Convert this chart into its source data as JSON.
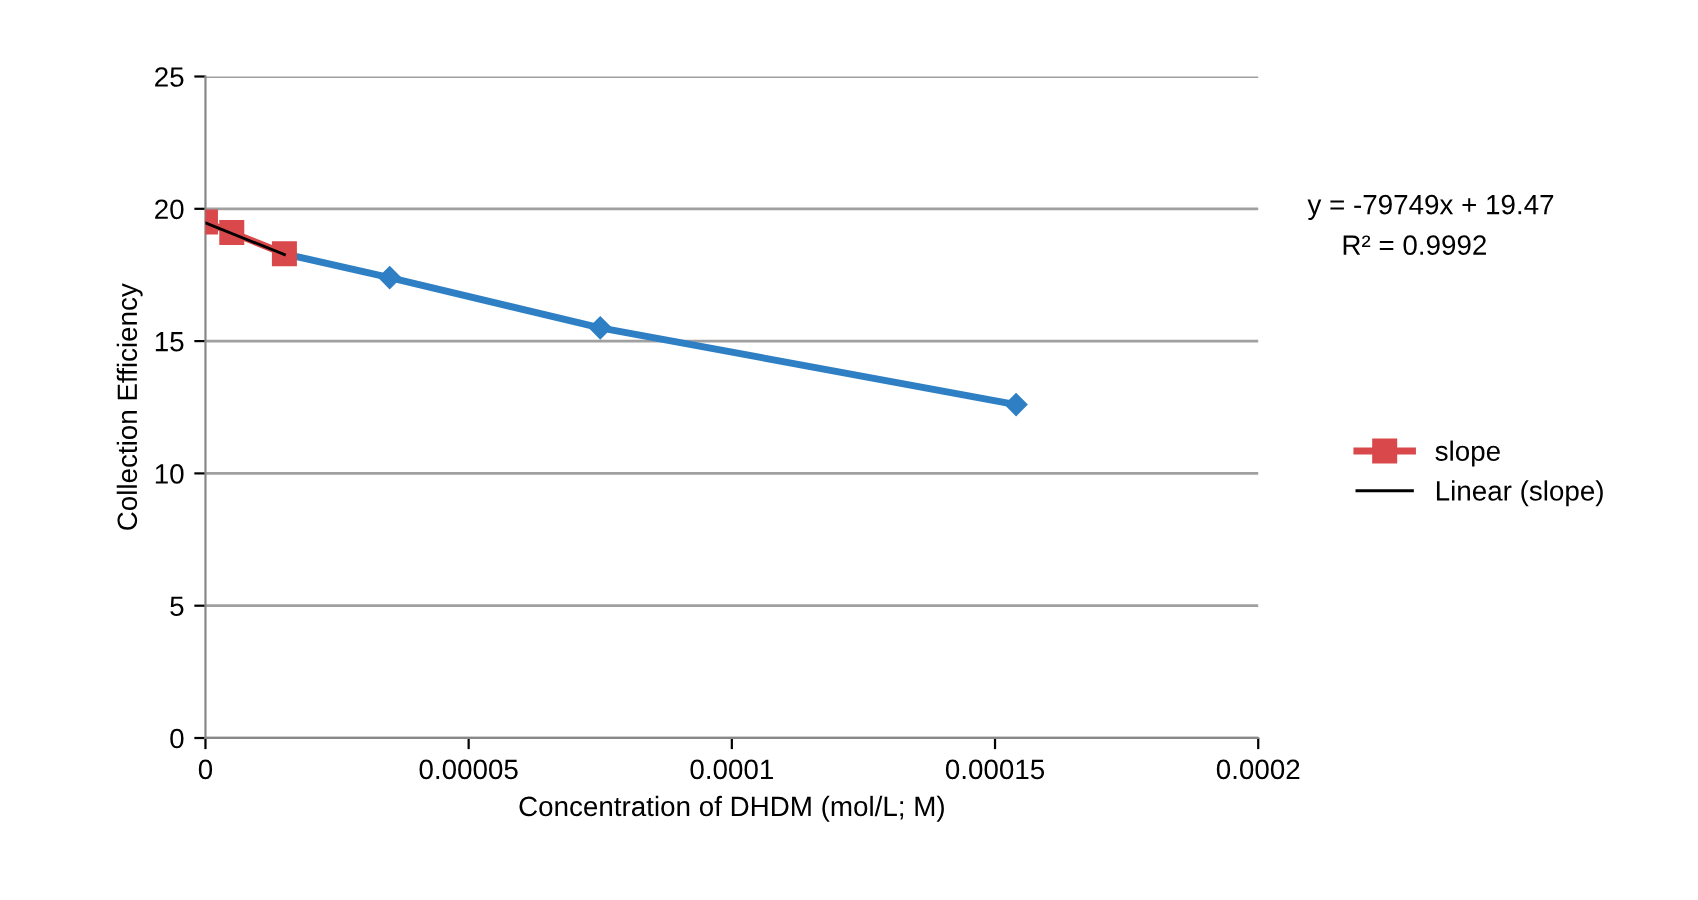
{
  "chart_data": {
    "type": "line",
    "xlabel": "Concentration of DHDM (mol/L; M)",
    "ylabel": "Collection Efficiency",
    "series": [
      {
        "color": "#2e7fc4",
        "marker": "diamond",
        "x": [
          1.5e-05,
          3.5e-05,
          7.5e-05,
          0.000154
        ],
        "values": [
          18.3,
          17.4,
          15.5,
          12.6
        ]
      },
      {
        "name": "slope",
        "color": "#d9484b",
        "marker": "square",
        "x": [
          0,
          5e-06,
          1.5e-05
        ],
        "values": [
          19.5,
          19.1,
          18.3
        ]
      },
      {
        "name": "Linear (slope)",
        "color": "#000000",
        "marker": "none",
        "x": [
          0,
          1.5e-05
        ],
        "values": [
          19.47,
          18.27
        ]
      }
    ],
    "annotations": [
      "y = -79749x + 19.47",
      "R² = 0.9992"
    ],
    "xlim": [
      0,
      0.0002
    ],
    "xticks": [
      0,
      {
        "value": 5e-05,
        "label": "0.00005"
      },
      {
        "value": 0.0001,
        "label": "0.0001"
      },
      {
        "value": 0.00015,
        "label": "0.00015"
      },
      {
        "value": 0.0002,
        "label": "0.0002"
      }
    ],
    "ylim": [
      0,
      25
    ],
    "yticks": [
      0,
      5,
      10,
      15,
      20,
      25
    ],
    "grid": "y",
    "legend": "right",
    "line_style": "solid"
  }
}
